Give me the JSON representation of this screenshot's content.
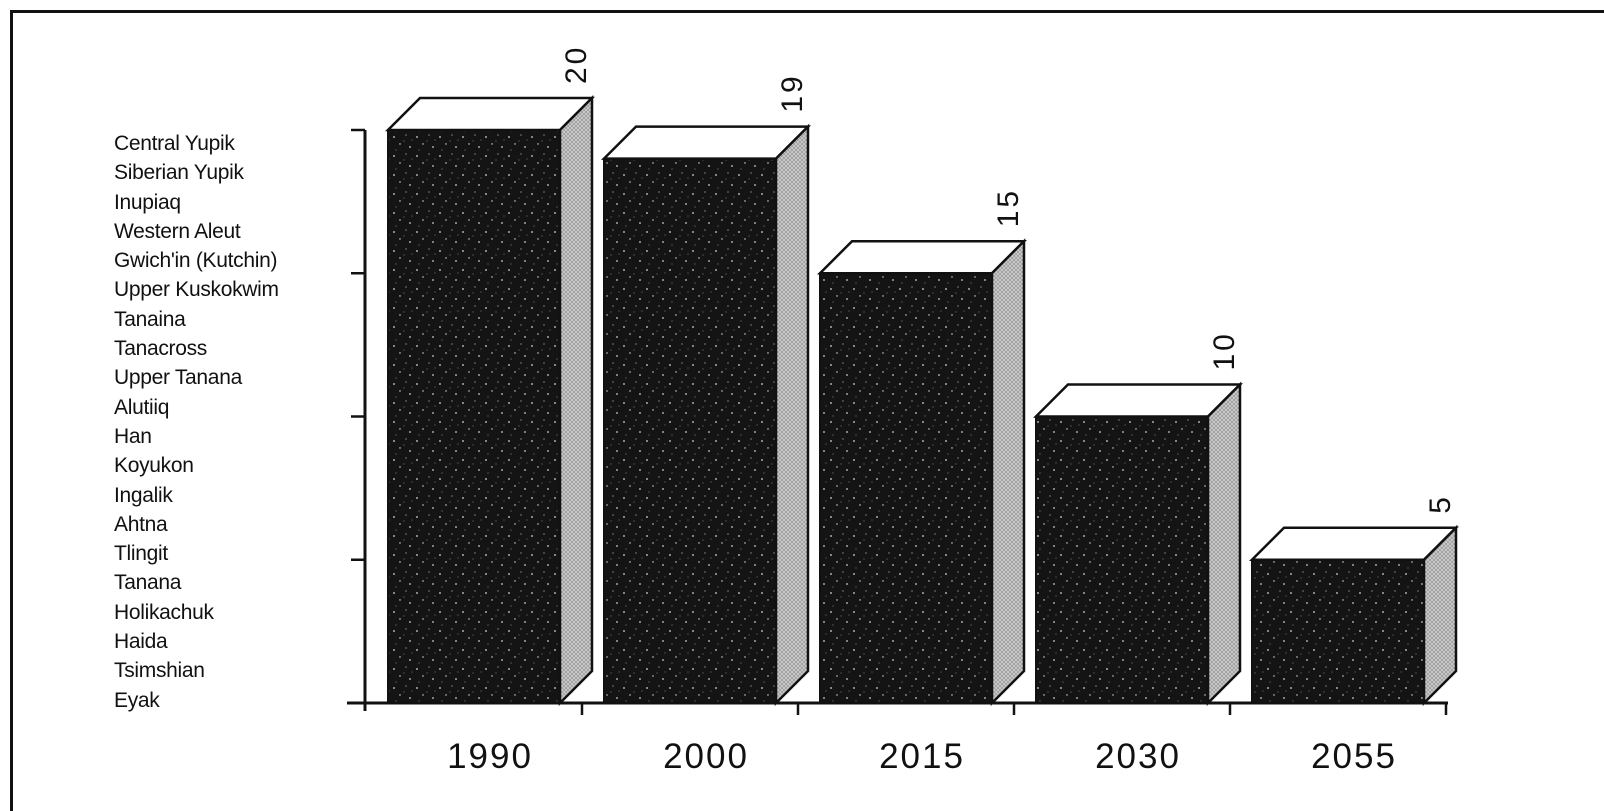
{
  "chart_data": {
    "type": "bar",
    "categories": [
      "1990",
      "2000",
      "2015",
      "2030",
      "2055"
    ],
    "values": [
      20,
      19,
      15,
      10,
      5
    ],
    "data_labels": [
      "20",
      "19",
      "15",
      "10",
      "5"
    ],
    "ylim": [
      0,
      20
    ],
    "y_ticks": [
      0,
      5,
      10,
      15,
      20
    ],
    "style": "3d",
    "grid": false,
    "colors": {
      "bar_front": "#141414",
      "bar_top": "#ffffff",
      "bar_side": "#9a9a9a",
      "axis": "#111111"
    }
  },
  "language_list": [
    "Central Yupik",
    "Siberian Yupik",
    "Inupiaq",
    "Western Aleut",
    "Gwich'in (Kutchin)",
    "Upper Kuskokwim",
    "Tanaina",
    "Tanacross",
    "Upper Tanana",
    "Alutiiq",
    "Han",
    "Koyukon",
    "Ingalik",
    "Ahtna",
    "Tlingit",
    "Tanana",
    "Holikachuk",
    "Haida",
    "Tsimshian",
    "Eyak"
  ]
}
